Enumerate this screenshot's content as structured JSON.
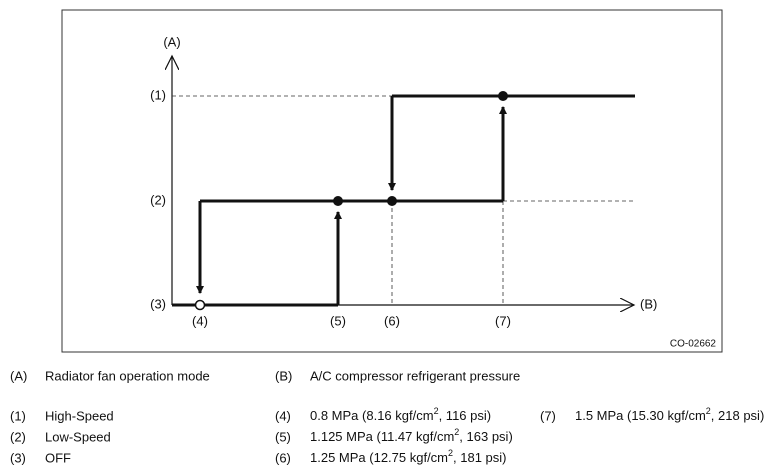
{
  "diagram": {
    "axis_y": "(A)",
    "axis_x": "(B)",
    "levels": [
      "(1)",
      "(2)",
      "(3)"
    ],
    "points": [
      "(4)",
      "(5)",
      "(6)",
      "(7)"
    ],
    "code": "CO-02662"
  },
  "legend": {
    "axes": [
      {
        "key": "(A)",
        "text": "Radiator fan operation mode"
      },
      {
        "key": "(B)",
        "text": "A/C compressor refrigerant pressure"
      }
    ],
    "modes": [
      {
        "key": "(1)",
        "text": "High-Speed"
      },
      {
        "key": "(2)",
        "text": "Low-Speed"
      },
      {
        "key": "(3)",
        "text": "OFF"
      }
    ],
    "pressures": [
      {
        "key": "(4)",
        "text": [
          "0.8 MPa (8.16 kgf/cm",
          "2",
          ", 116 psi)"
        ]
      },
      {
        "key": "(5)",
        "text": [
          "1.125 MPa (11.47 kgf/cm",
          "2",
          ", 163 psi)"
        ]
      },
      {
        "key": "(6)",
        "text": [
          "1.25 MPa (12.75 kgf/cm",
          "2",
          ", 181 psi)"
        ]
      },
      {
        "key": "(7)",
        "text": [
          "1.5 MPa (15.30 kgf/cm",
          "2",
          ", 218 psi)"
        ]
      }
    ]
  }
}
